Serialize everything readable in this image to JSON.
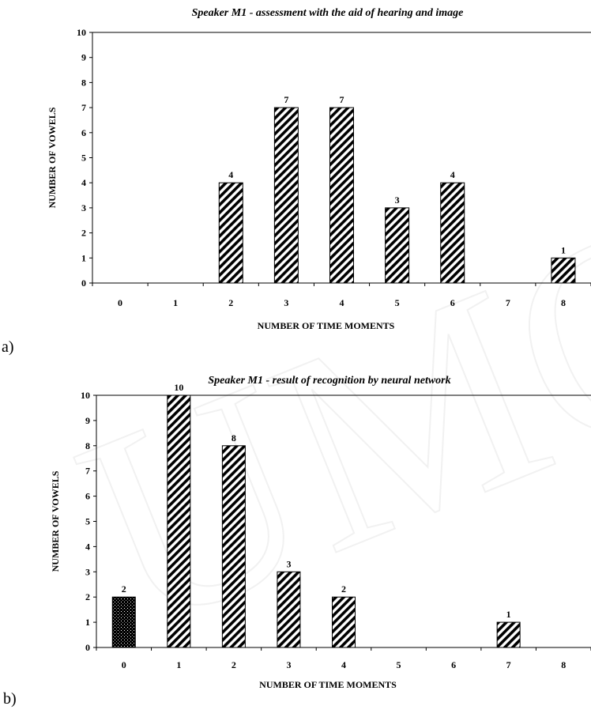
{
  "panels": [
    {
      "label": "a)"
    },
    {
      "label": "b)"
    }
  ],
  "watermark": {
    "text": "UMCS"
  },
  "colors": {
    "bar_fill": "#000000",
    "axis": "#000000",
    "watermark": "#f1f1f1"
  },
  "chart_data": [
    {
      "type": "bar",
      "title": "Speaker M1 - assessment with the aid of hearing and image",
      "xlabel": "NUMBER OF TIME MOMENTS",
      "ylabel": "NUMBER OF VOWELS",
      "categories": [
        "0",
        "1",
        "2",
        "3",
        "4",
        "5",
        "6",
        "7",
        "8"
      ],
      "values": [
        0,
        0,
        4,
        7,
        7,
        3,
        4,
        0,
        1
      ],
      "patterns": [
        "diagonal",
        "diagonal",
        "diagonal",
        "diagonal",
        "diagonal",
        "diagonal",
        "diagonal",
        "diagonal",
        "diagonal"
      ],
      "ylim": [
        0,
        10
      ],
      "yticks": [
        "0",
        "1",
        "2",
        "3",
        "4",
        "5",
        "6",
        "7",
        "8",
        "9",
        "10"
      ],
      "grid": false,
      "legend": "none"
    },
    {
      "type": "bar",
      "title": "Speaker M1 - result of recognition by neural network",
      "xlabel": "NUMBER OF TIME MOMENTS",
      "ylabel": "NUMBER OF VOWELS",
      "categories": [
        "0",
        "1",
        "2",
        "3",
        "4",
        "5",
        "6",
        "7",
        "8"
      ],
      "values": [
        2,
        10,
        8,
        3,
        2,
        0,
        0,
        1,
        0
      ],
      "patterns": [
        "dots",
        "diagonal",
        "diagonal",
        "diagonal",
        "diagonal",
        "diagonal",
        "diagonal",
        "diagonal",
        "diagonal"
      ],
      "ylim": [
        0,
        10
      ],
      "yticks": [
        "0",
        "1",
        "2",
        "3",
        "4",
        "5",
        "6",
        "7",
        "8",
        "9",
        "10"
      ],
      "grid": false,
      "legend": "none"
    }
  ]
}
